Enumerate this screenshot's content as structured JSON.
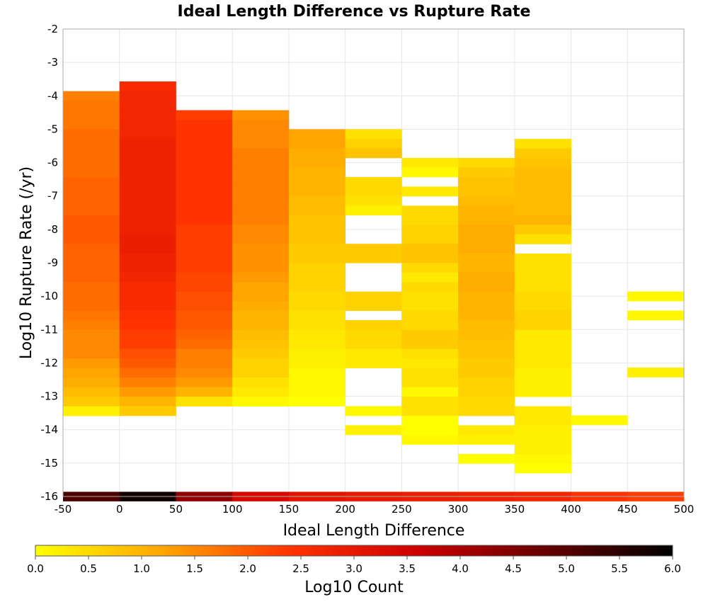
{
  "chart_data": {
    "type": "heatmap",
    "title": "Ideal Length Difference vs Rupture Rate",
    "xlabel": "Ideal Length Difference",
    "ylabel": "Log10 Rupture Rate (/yr)",
    "xlim": [
      -50,
      500
    ],
    "ylim": [
      -16,
      -2
    ],
    "x_ticks": [
      "-50",
      "0",
      "50",
      "100",
      "150",
      "200",
      "250",
      "300",
      "350",
      "400",
      "450",
      "500"
    ],
    "y_ticks": [
      "-2",
      "-3",
      "-4",
      "-5",
      "-6",
      "-7",
      "-8",
      "-9",
      "-10",
      "-11",
      "-12",
      "-13",
      "-14",
      "-15",
      "-16"
    ],
    "x_bin_width": 50,
    "y_bin_height": 0.286,
    "grid": true,
    "colorbar": {
      "label": "Log10 Count",
      "min": 0.0,
      "max": 6.0,
      "ticks": [
        "0.0",
        "0.5",
        "1.0",
        "1.5",
        "2.0",
        "2.5",
        "3.0",
        "3.5",
        "4.0",
        "4.5",
        "5.0",
        "5.5",
        "6.0"
      ],
      "stops": [
        "#ffff00",
        "#ffa500",
        "#ff3300",
        "#cc0000",
        "#660000",
        "#000000"
      ]
    },
    "columns": [
      {
        "x_start": -50,
        "y_start": -3.86,
        "values": [
          1.6,
          1.7,
          1.7,
          1.7,
          1.8,
          1.8,
          1.8,
          1.8,
          1.8,
          1.9,
          1.9,
          1.9,
          1.9,
          2.0,
          2.0,
          2.0,
          1.9,
          1.9,
          1.9,
          1.9,
          1.8,
          1.8,
          1.8,
          1.7,
          1.6,
          1.5,
          1.5,
          1.5,
          1.3,
          1.2,
          1.1,
          0.9,
          0.7,
          0.2
        ]
      },
      {
        "x_start": 0,
        "y_start": -3.57,
        "values": [
          2.6,
          2.7,
          2.7,
          2.7,
          2.7,
          2.7,
          2.8,
          2.8,
          2.8,
          2.8,
          2.8,
          2.8,
          2.8,
          2.8,
          2.8,
          2.8,
          2.9,
          2.9,
          2.8,
          2.8,
          2.7,
          2.6,
          2.6,
          2.6,
          2.5,
          2.4,
          2.3,
          2.3,
          2.1,
          2.0,
          1.8,
          1.6,
          1.3,
          1.0,
          0.7
        ]
      },
      {
        "x_start": 50,
        "y_start": -4.43,
        "values": [
          2.3,
          2.4,
          2.4,
          2.4,
          2.4,
          2.4,
          2.4,
          2.4,
          2.4,
          2.4,
          2.4,
          2.4,
          2.3,
          2.3,
          2.3,
          2.3,
          2.3,
          2.2,
          2.2,
          2.1,
          2.1,
          2.0,
          2.0,
          1.9,
          1.8,
          1.6,
          1.6,
          1.5,
          1.3,
          1.0,
          0.4
        ]
      },
      {
        "x_start": 100,
        "y_start": -4.43,
        "values": [
          1.4,
          1.5,
          1.5,
          1.5,
          1.6,
          1.6,
          1.6,
          1.6,
          1.6,
          1.6,
          1.6,
          1.6,
          1.5,
          1.5,
          1.4,
          1.4,
          1.4,
          1.3,
          1.2,
          1.2,
          1.1,
          1.0,
          1.0,
          0.9,
          0.8,
          0.7,
          0.6,
          0.6,
          0.4,
          0.3,
          0.1
        ]
      },
      {
        "x_start": 150,
        "y_start": -5.0,
        "values": [
          1.2,
          1.2,
          1.1,
          1.1,
          1.0,
          1.0,
          1.0,
          0.9,
          0.9,
          0.8,
          0.8,
          0.8,
          0.7,
          0.7,
          0.6,
          0.6,
          0.6,
          0.5,
          0.5,
          0.4,
          0.4,
          0.3,
          0.3,
          0.2,
          0.2,
          0.1,
          0.1,
          0.1,
          0.0
        ]
      },
      {
        "x_start": 200,
        "y_start": -5.0,
        "values": [
          0.4,
          0.6,
          0.8,
          null,
          null,
          0.5,
          0.5,
          0.4,
          0.2,
          null,
          null,
          null,
          0.7,
          0.7,
          null,
          null,
          null,
          0.6,
          0.6,
          null,
          0.6,
          0.5,
          0.5,
          0.3,
          0.3,
          null,
          null,
          null,
          null,
          0.1,
          null,
          0.2,
          null,
          null,
          null,
          null
        ]
      },
      {
        "x_start": 250,
        "y_start": -5.86,
        "values": [
          0.3,
          0.1,
          null,
          0.3,
          null,
          0.5,
          0.5,
          0.6,
          0.6,
          0.8,
          0.8,
          0.5,
          0.3,
          0.5,
          0.4,
          0.4,
          0.5,
          0.5,
          0.7,
          0.7,
          0.4,
          0.3,
          0.4,
          0.4,
          0.1,
          0.4,
          0.4,
          0.0,
          0.0,
          0.1,
          null
        ]
      },
      {
        "x_start": 300,
        "y_start": -5.86,
        "values": [
          0.5,
          0.7,
          0.8,
          0.8,
          0.9,
          1.0,
          1.0,
          1.1,
          1.1,
          1.1,
          1.0,
          1.0,
          1.1,
          1.1,
          1.0,
          1.0,
          1.0,
          0.9,
          0.9,
          0.8,
          0.8,
          0.7,
          0.7,
          0.6,
          0.6,
          0.5,
          0.5,
          null,
          0.3,
          0.2,
          null,
          0.0
        ]
      },
      {
        "x_start": 350,
        "y_start": -5.29,
        "values": [
          0.4,
          0.7,
          0.8,
          0.9,
          0.9,
          0.9,
          0.9,
          0.9,
          1.0,
          0.7,
          0.4,
          null,
          0.4,
          0.4,
          0.4,
          0.4,
          0.5,
          0.5,
          0.6,
          0.6,
          0.3,
          0.3,
          0.3,
          0.3,
          0.2,
          0.2,
          0.2,
          null,
          0.3,
          0.3,
          0.2,
          0.2,
          0.2,
          0.1,
          0.0
        ]
      },
      {
        "x_start": 400,
        "y_start": -13.57,
        "values": [
          0.1
        ]
      },
      {
        "x_start": 450,
        "y_start": -9.86,
        "values": [
          0.1,
          null,
          0.1
        ]
      },
      {
        "x_start": 450,
        "y_start": -12.14,
        "values": [
          0.2
        ]
      }
    ],
    "bottom_row": {
      "y_start": -15.86,
      "values": [
        5.1,
        5.8,
        4.3,
        3.4,
        3.1,
        3.0,
        2.9,
        2.8,
        2.7,
        2.4,
        2.3
      ]
    }
  }
}
